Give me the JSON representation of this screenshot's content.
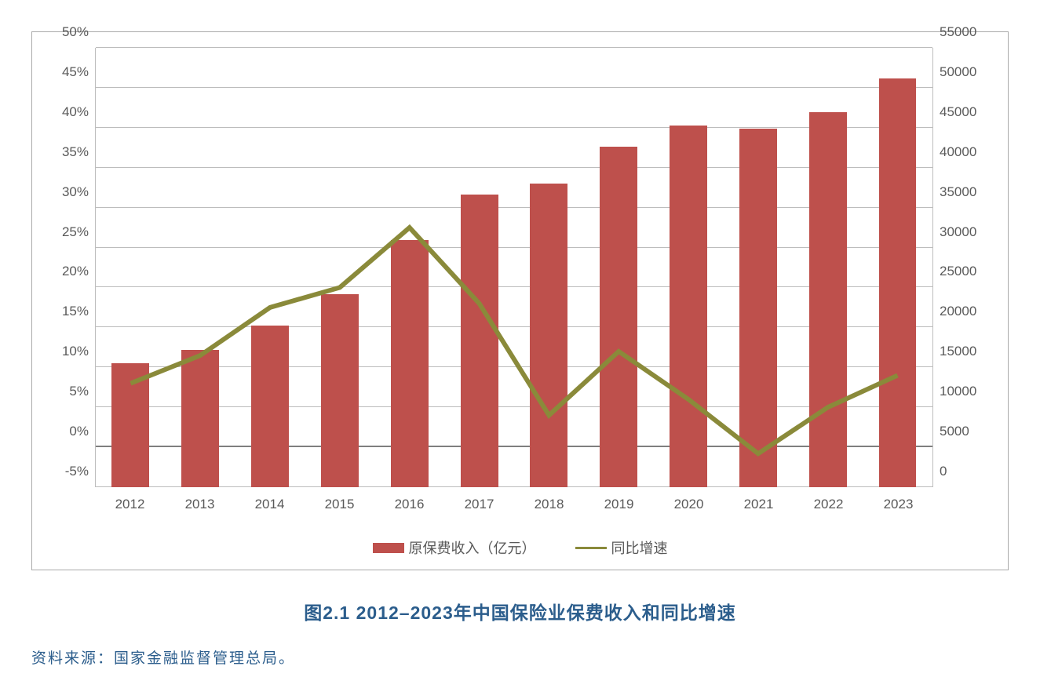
{
  "chart": {
    "type": "bar+line",
    "categories": [
      "2012",
      "2013",
      "2014",
      "2015",
      "2016",
      "2017",
      "2018",
      "2019",
      "2020",
      "2021",
      "2022",
      "2023"
    ],
    "bar_series": {
      "label": "原保费收入（亿元）",
      "values": [
        15500,
        17200,
        20200,
        24200,
        30900,
        36600,
        38000,
        42600,
        45300,
        44900,
        46900,
        51200
      ],
      "color": "#be504c",
      "bar_width_ratio": 0.54
    },
    "line_series": {
      "label": "同比增速",
      "values": [
        8.0,
        11.5,
        17.5,
        20.0,
        27.5,
        18.0,
        4.0,
        12.0,
        6.0,
        -0.8,
        5.0,
        9.0
      ],
      "color": "#8a8a3a",
      "line_width": 3
    },
    "left_axis": {
      "min": -5,
      "max": 50,
      "step": 5,
      "unit": "%",
      "ticks": [
        -5,
        0,
        5,
        10,
        15,
        20,
        25,
        30,
        35,
        40,
        45,
        50
      ]
    },
    "right_axis": {
      "min": 0,
      "max": 55000,
      "step": 5000,
      "ticks": [
        0,
        5000,
        10000,
        15000,
        20000,
        25000,
        30000,
        35000,
        40000,
        45000,
        50000,
        55000
      ]
    },
    "grid_color": "#bdbdbd",
    "zero_line_color": "#7f7f7f",
    "frame_border": "#a9a9a9",
    "tick_font_color": "#595959",
    "tick_font_size": 17,
    "legend_font_size": 18,
    "background_color": "#ffffff"
  },
  "caption": "图2.1 2012–2023年中国保险业保费收入和同比增速",
  "caption_color": "#2b5d8c",
  "caption_font_size": 23,
  "source": "资料来源：国家金融监督管理总局。",
  "source_color": "#2b5d8c",
  "source_font_size": 19
}
